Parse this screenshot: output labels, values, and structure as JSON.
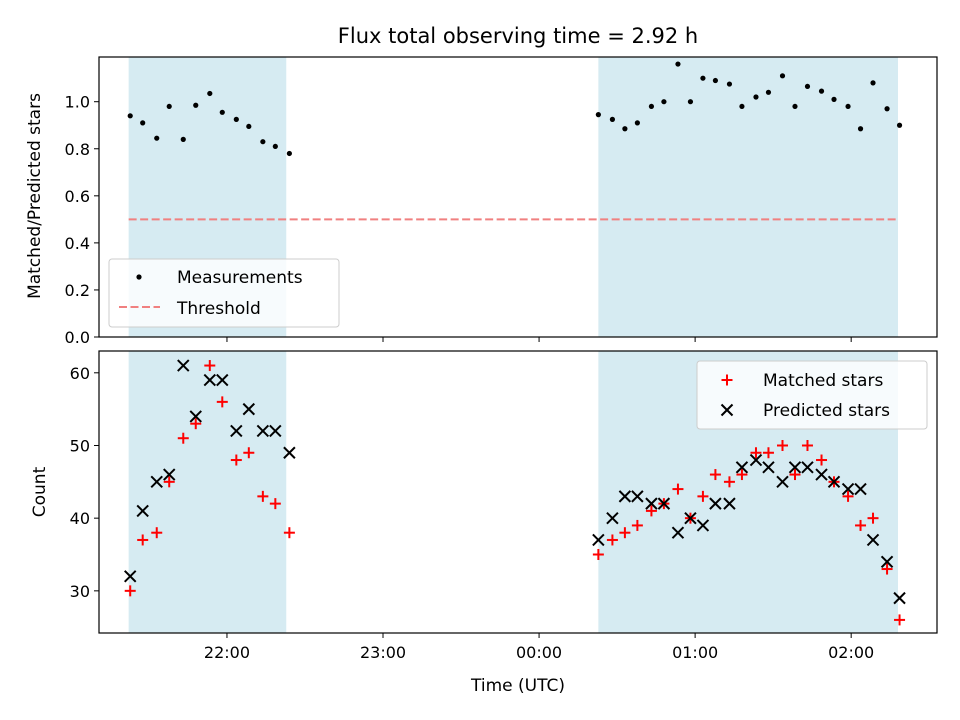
{
  "chart_data": [
    {
      "type": "scatter",
      "title": "Flux total observing time = 2.92 h",
      "ylabel": "Matched/Predicted stars",
      "xlim_hours": [
        -2.82,
        2.55
      ],
      "ylim": [
        0,
        1.19
      ],
      "yticks": [
        "0.0",
        "0.2",
        "0.4",
        "0.6",
        "0.8",
        "1.0"
      ],
      "ytick_values": [
        0,
        0.2,
        0.4,
        0.6,
        0.8,
        1.0
      ],
      "shaded_spans_hours": [
        [
          -2.63,
          -1.62
        ],
        [
          0.38,
          2.3
        ]
      ],
      "threshold": {
        "name": "Threshold",
        "value": 0.5,
        "x_range_hours": [
          -2.63,
          2.3
        ],
        "color": "#f08080"
      },
      "legend": {
        "position": "lower-left",
        "entries": [
          "Measurements",
          "Threshold"
        ]
      },
      "series": [
        {
          "name": "Measurements",
          "color": "#000000",
          "x_hours": [
            -2.62,
            -2.54,
            -2.45,
            -2.37,
            -2.28,
            -2.2,
            -2.11,
            -2.03,
            -1.94,
            -1.86,
            -1.77,
            -1.69,
            -1.6,
            0.38,
            0.47,
            0.55,
            0.63,
            0.72,
            0.8,
            0.89,
            0.97,
            1.05,
            1.13,
            1.22,
            1.3,
            1.39,
            1.47,
            1.56,
            1.64,
            1.72,
            1.81,
            1.89,
            1.98,
            2.06,
            2.14,
            2.23,
            2.31
          ],
          "y": [
            0.94,
            0.91,
            0.845,
            0.98,
            0.84,
            0.985,
            1.035,
            0.955,
            0.925,
            0.895,
            0.83,
            0.81,
            0.78,
            0.945,
            0.925,
            0.885,
            0.91,
            0.98,
            1.0,
            1.16,
            1.0,
            1.1,
            1.09,
            1.075,
            0.98,
            1.02,
            1.04,
            1.11,
            0.98,
            1.065,
            1.045,
            1.01,
            0.98,
            0.885,
            1.08,
            0.97,
            0.9
          ]
        }
      ]
    },
    {
      "type": "scatter",
      "xlabel": "Time (UTC)",
      "ylabel": "Count",
      "xlim_hours": [
        -2.82,
        2.55
      ],
      "ylim": [
        24.2,
        63
      ],
      "yticks": [
        "30",
        "40",
        "50",
        "60"
      ],
      "ytick_values": [
        30,
        40,
        50,
        60
      ],
      "xticks": [
        "22:00",
        "23:00",
        "00:00",
        "01:00",
        "02:00"
      ],
      "xtick_hours": [
        -2,
        -1,
        0,
        1,
        2
      ],
      "shaded_spans_hours": [
        [
          -2.63,
          -1.62
        ],
        [
          0.38,
          2.3
        ]
      ],
      "legend": {
        "position": "top-right",
        "entries": [
          "Matched stars",
          "Predicted stars"
        ]
      },
      "series": [
        {
          "name": "Matched stars",
          "marker": "plus",
          "color": "#ff0000",
          "x_hours": [
            -2.62,
            -2.54,
            -2.45,
            -2.37,
            -2.28,
            -2.2,
            -2.11,
            -2.03,
            -1.94,
            -1.86,
            -1.77,
            -1.69,
            -1.6,
            0.38,
            0.47,
            0.55,
            0.63,
            0.72,
            0.8,
            0.89,
            0.97,
            1.05,
            1.13,
            1.22,
            1.3,
            1.39,
            1.47,
            1.56,
            1.64,
            1.72,
            1.81,
            1.89,
            1.98,
            2.06,
            2.14,
            2.23,
            2.31
          ],
          "y": [
            30,
            37,
            38,
            45,
            51,
            53,
            61,
            56,
            48,
            49,
            43,
            42,
            38,
            35,
            37,
            38,
            39,
            41,
            42,
            44,
            40,
            43,
            46,
            45,
            46,
            49,
            49,
            50,
            46,
            50,
            48,
            45,
            43,
            39,
            40,
            33,
            26
          ]
        },
        {
          "name": "Predicted stars",
          "marker": "x",
          "color": "#000000",
          "x_hours": [
            -2.62,
            -2.54,
            -2.45,
            -2.37,
            -2.28,
            -2.2,
            -2.11,
            -2.03,
            -1.94,
            -1.86,
            -1.77,
            -1.69,
            -1.6,
            0.38,
            0.47,
            0.55,
            0.63,
            0.72,
            0.8,
            0.89,
            0.97,
            1.05,
            1.13,
            1.22,
            1.3,
            1.39,
            1.47,
            1.56,
            1.64,
            1.72,
            1.81,
            1.89,
            1.98,
            2.06,
            2.14,
            2.23,
            2.31
          ],
          "y": [
            32,
            41,
            45,
            46,
            61,
            54,
            59,
            59,
            52,
            55,
            52,
            52,
            49,
            37,
            40,
            43,
            43,
            42,
            42,
            38,
            40,
            39,
            42,
            42,
            47,
            48,
            47,
            45,
            47,
            47,
            46,
            45,
            44,
            44,
            37,
            34,
            29
          ]
        }
      ]
    }
  ],
  "colors": {
    "span": "#add8e6",
    "span_alpha": 0.5,
    "axis": "#000000"
  }
}
